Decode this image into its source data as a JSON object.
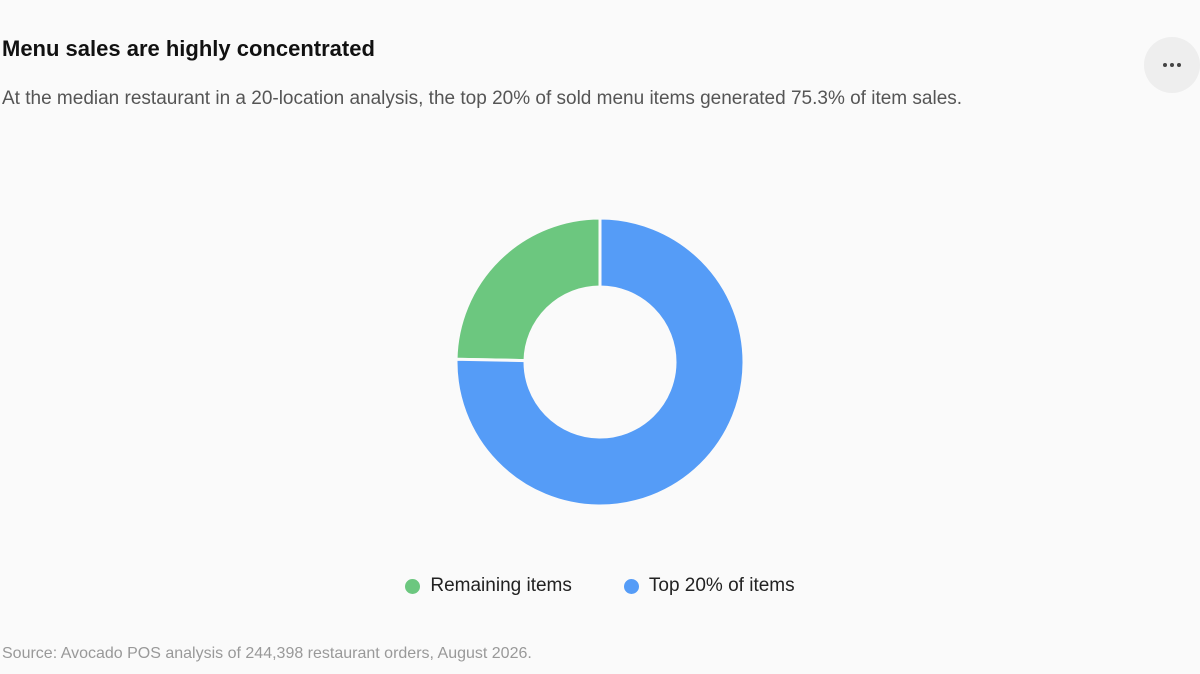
{
  "chart_data": {
    "type": "pie",
    "title": "Menu sales are highly concentrated",
    "subtitle": "At the median restaurant in a 20-location analysis, the top 20% of sold menu items generated 75.3% of item sales.",
    "source": "Source: Avocado POS analysis of 244,398 restaurant orders, August 2026.",
    "categories": [
      "Remaining items",
      "Top 20% of items"
    ],
    "values": [
      24.7,
      75.3
    ],
    "colors": [
      "#6cc77f",
      "#559cf7"
    ],
    "donut": true,
    "legend": "bottom"
  }
}
